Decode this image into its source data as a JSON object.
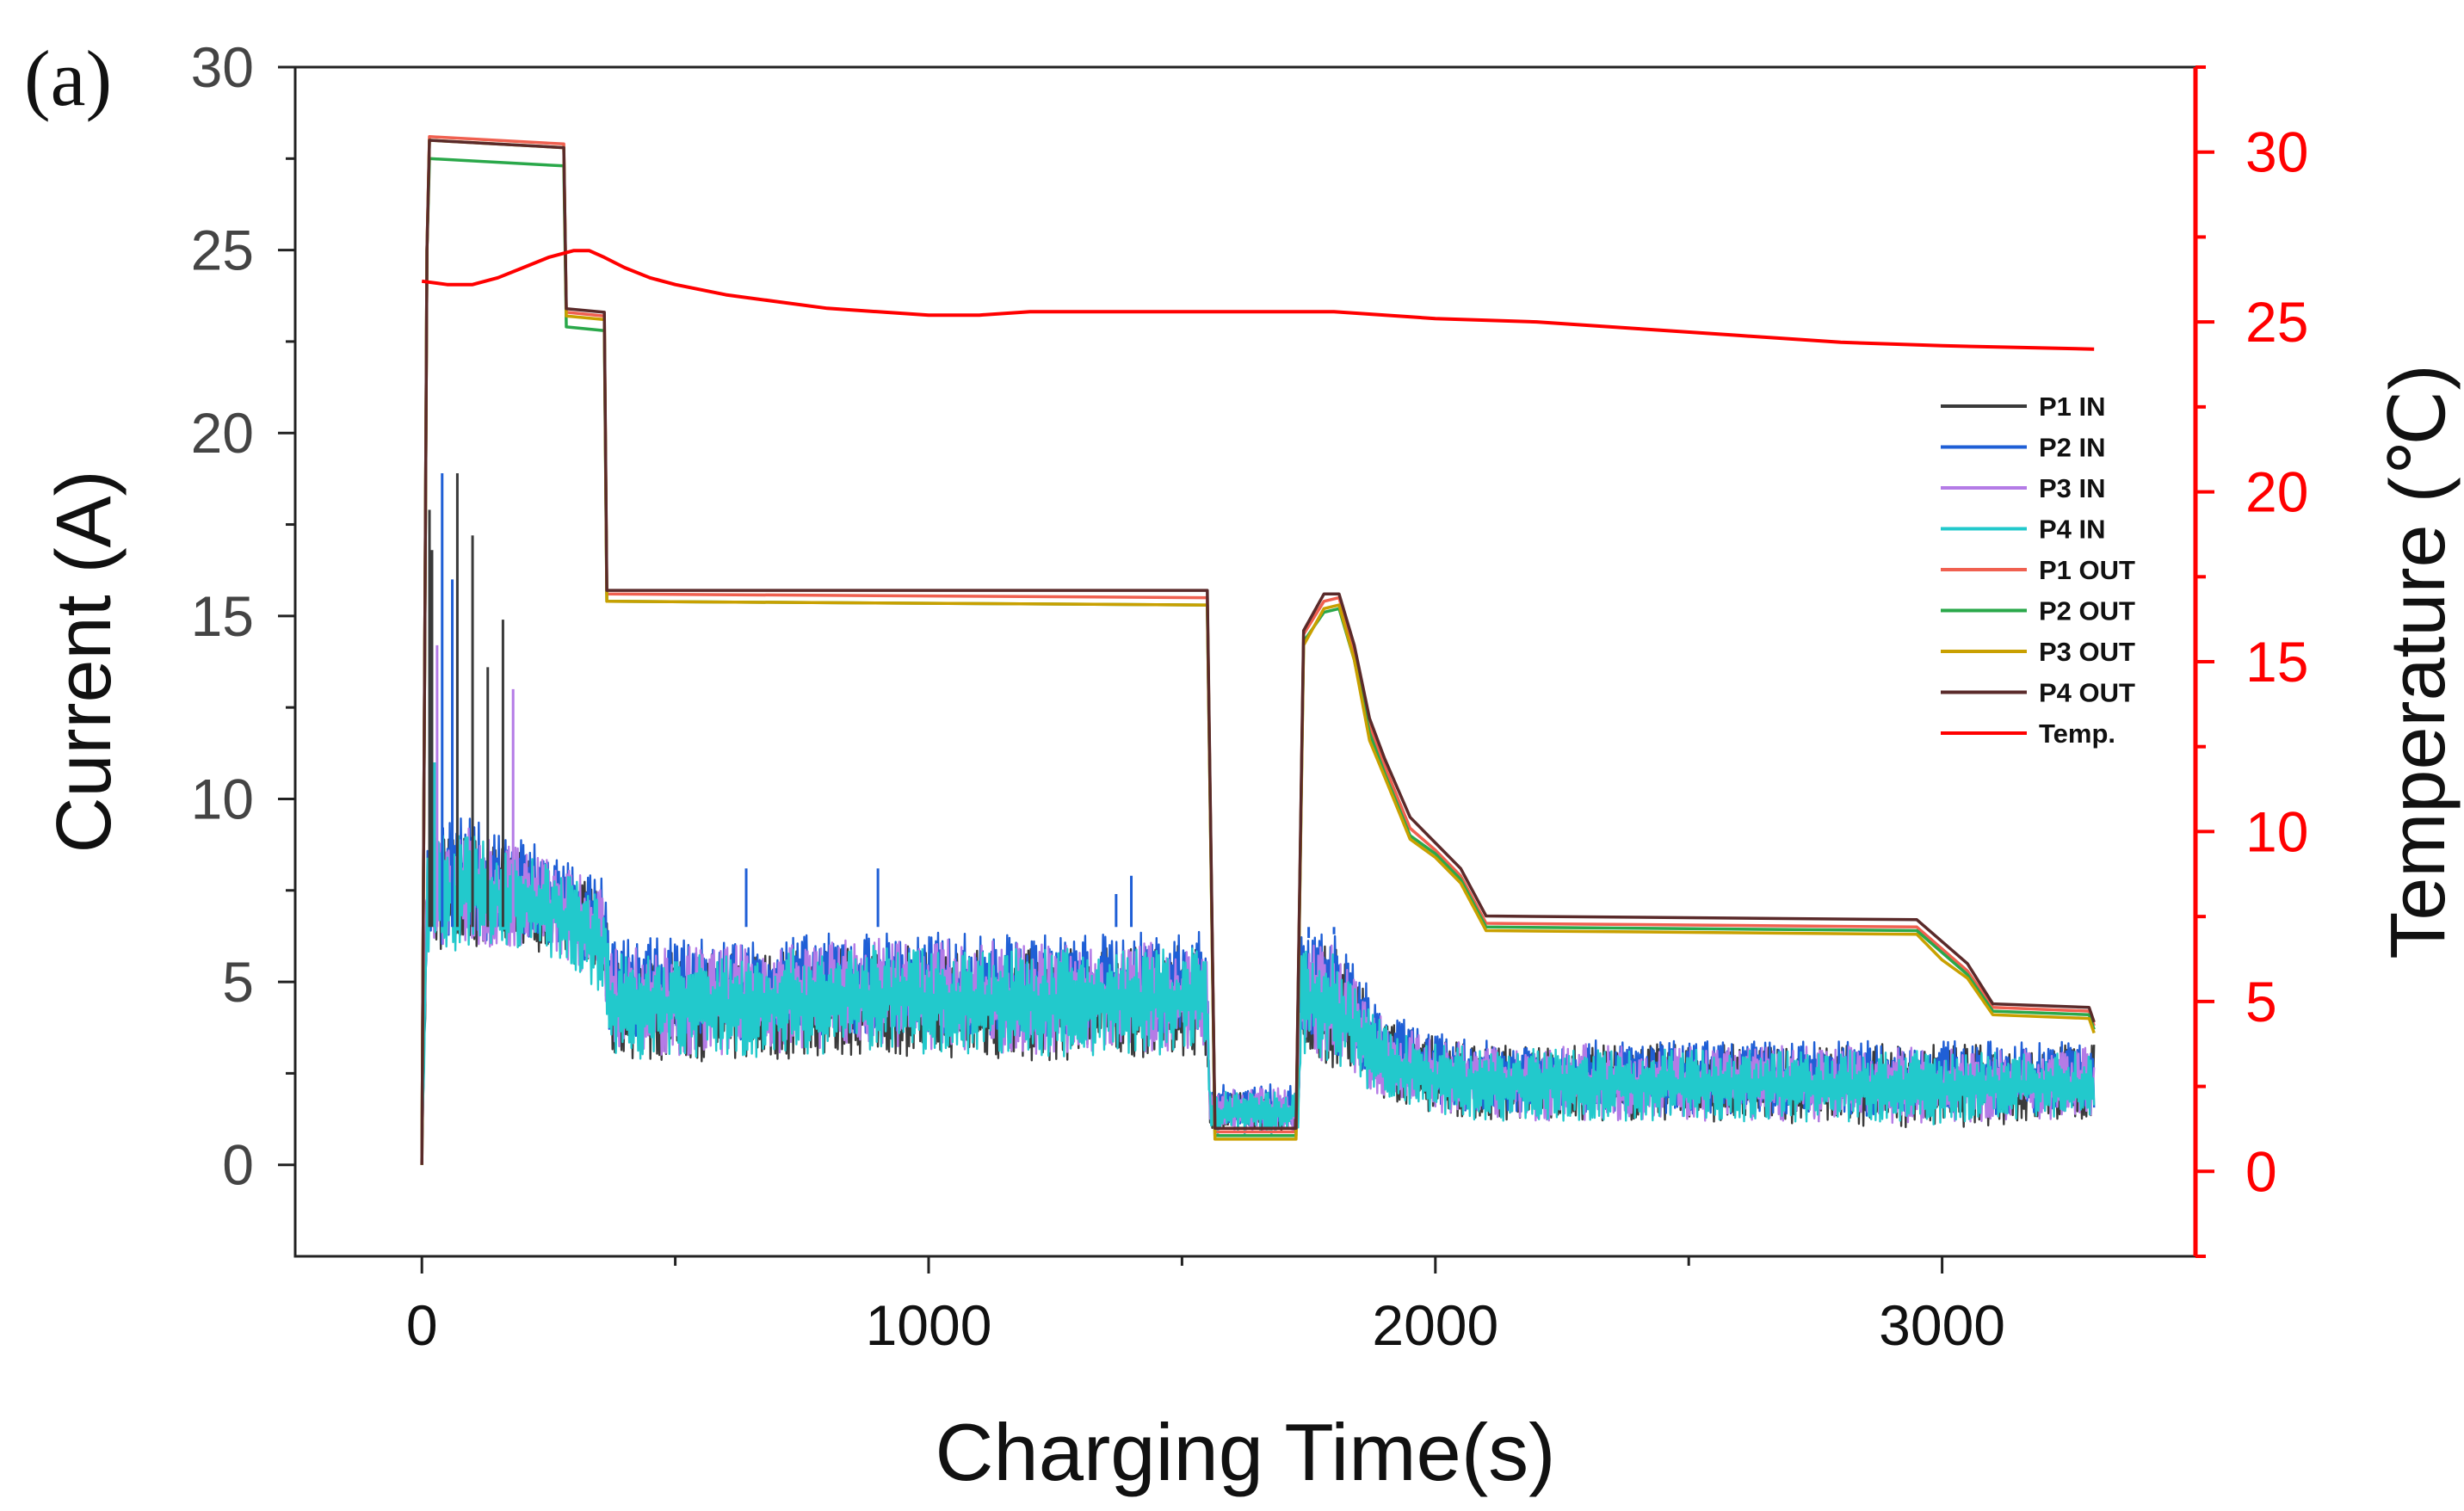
{
  "panel_label": "(a)",
  "chart_data": {
    "type": "line",
    "title": "",
    "xlabel": "Charging Time(s)",
    "ylabel": "Current (A)",
    "y2label": "Temperature (℃)",
    "xlim": [
      -250,
      3500
    ],
    "ylim": [
      -2.5,
      30
    ],
    "y2lim": [
      -2.5,
      32.5
    ],
    "x_ticks": [
      0,
      1000,
      2000,
      3000
    ],
    "x_tick_labels": [
      "0",
      "1000",
      "2000",
      "3000"
    ],
    "y_ticks": [
      0,
      5,
      10,
      15,
      20,
      25,
      30
    ],
    "y_tick_labels": [
      "0",
      "5",
      "10",
      "15",
      "20",
      "25",
      "30"
    ],
    "y2_ticks": [
      0,
      5,
      10,
      15,
      20,
      25,
      30
    ],
    "y2_tick_labels": [
      "0",
      "5",
      "10",
      "15",
      "20",
      "25",
      "30"
    ],
    "legend_position": "right-center",
    "legend": [
      {
        "name": "P1 IN",
        "color": "#3a3a3a"
      },
      {
        "name": "P2 IN",
        "color": "#1f5fd6"
      },
      {
        "name": "P3 IN",
        "color": "#b47be6"
      },
      {
        "name": "P4 IN",
        "color": "#22c9cc"
      },
      {
        "name": "P1 OUT",
        "color": "#f06050"
      },
      {
        "name": "P2 OUT",
        "color": "#2aa84a"
      },
      {
        "name": "P3 OUT",
        "color": "#c9a000"
      },
      {
        "name": "P4 OUT",
        "color": "#5a2a2a"
      },
      {
        "name": "Temp.",
        "color": "#ff0000"
      }
    ],
    "series": [
      {
        "name": "P1 OUT",
        "axis": "left",
        "color": "#f06050",
        "x": [
          0,
          10,
          15,
          280,
          285,
          360,
          365,
          1550,
          1565,
          1725,
          1740,
          1780,
          1810,
          1840,
          1870,
          1900,
          1950,
          2000,
          2050,
          2100,
          2950,
          3000,
          3050,
          3100,
          3290,
          3300
        ],
        "y": [
          0,
          25,
          28.1,
          27.9,
          23.3,
          23.2,
          15.6,
          15.5,
          0.9,
          0.9,
          14.5,
          15.4,
          15.5,
          14,
          12,
          10.9,
          9.2,
          8.6,
          7.9,
          6.6,
          6.5,
          5.9,
          5.3,
          4.3,
          4.2,
          3.8
        ]
      },
      {
        "name": "P2 OUT",
        "axis": "left",
        "color": "#2aa84a",
        "x": [
          0,
          10,
          15,
          280,
          285,
          360,
          365,
          1550,
          1565,
          1725,
          1740,
          1780,
          1810,
          1840,
          1870,
          1900,
          1950,
          2000,
          2050,
          2100,
          2950,
          3000,
          3050,
          3100,
          3290,
          3300
        ],
        "y": [
          0,
          25,
          27.5,
          27.3,
          22.9,
          22.8,
          15.4,
          15.3,
          0.8,
          0.8,
          14.3,
          15.1,
          15.2,
          13.8,
          11.8,
          10.7,
          9.0,
          8.5,
          7.8,
          6.5,
          6.4,
          5.8,
          5.2,
          4.2,
          4.1,
          3.7
        ]
      },
      {
        "name": "P3 OUT",
        "axis": "left",
        "color": "#c9a000",
        "x": [
          0,
          10,
          15,
          280,
          285,
          360,
          365,
          1550,
          1565,
          1725,
          1740,
          1780,
          1810,
          1840,
          1870,
          1900,
          1950,
          2000,
          2050,
          2100,
          2950,
          3000,
          3050,
          3100,
          3290,
          3300
        ],
        "y": [
          0,
          25,
          28.0,
          27.8,
          23.2,
          23.1,
          15.4,
          15.3,
          0.7,
          0.7,
          14.2,
          15.2,
          15.3,
          13.8,
          11.6,
          10.6,
          8.9,
          8.4,
          7.7,
          6.4,
          6.3,
          5.6,
          5.1,
          4.1,
          4.0,
          3.6
        ]
      },
      {
        "name": "P4 OUT",
        "axis": "left",
        "color": "#5a2a2a",
        "x": [
          0,
          10,
          15,
          280,
          285,
          360,
          365,
          1550,
          1565,
          1725,
          1740,
          1780,
          1810,
          1840,
          1870,
          1900,
          1950,
          2000,
          2050,
          2100,
          2950,
          3000,
          3050,
          3100,
          3290,
          3300
        ],
        "y": [
          0,
          25,
          28.0,
          27.8,
          23.4,
          23.3,
          15.7,
          15.7,
          1.0,
          1.0,
          14.6,
          15.6,
          15.6,
          14.2,
          12.2,
          11.1,
          9.5,
          8.8,
          8.1,
          6.8,
          6.7,
          6.1,
          5.5,
          4.4,
          4.3,
          3.9
        ]
      },
      {
        "name": "P1 IN",
        "axis": "left",
        "color": "#3a3a3a",
        "x": [
          0,
          10,
          20,
          100,
          200,
          280,
          360,
          370,
          600,
          900,
          1200,
          1550,
          1555,
          1730,
          1735,
          1800,
          1900,
          2000,
          2100,
          2500,
          3000,
          3300
        ],
        "y": [
          0,
          6,
          7,
          7.2,
          6.8,
          6.5,
          5.5,
          4.3,
          4.2,
          4.4,
          4.3,
          4.2,
          1.5,
          1.6,
          4.0,
          3.9,
          3.0,
          2.6,
          2.3,
          2.1,
          2.0,
          2.2
        ],
        "y_lo": [
          0,
          5.8,
          5.8,
          5.9,
          5.9,
          5.7,
          4.8,
          2.9,
          2.8,
          3.0,
          2.8,
          3.0,
          0.9,
          0.9,
          3.0,
          2.6,
          1.8,
          1.4,
          1.2,
          1.2,
          1.0,
          1.2
        ],
        "y_hi": [
          0,
          8.5,
          9,
          9,
          8.5,
          8,
          7.5,
          5.8,
          5.8,
          6.0,
          5.9,
          6.0,
          2.0,
          2.0,
          6.2,
          6.0,
          4.0,
          3.5,
          3.3,
          3.3,
          3.3,
          3.3
        ]
      },
      {
        "name": "P2 IN",
        "axis": "left",
        "color": "#1f5fd6",
        "x": [
          0,
          10,
          20,
          100,
          200,
          280,
          360,
          370,
          600,
          900,
          1200,
          1550,
          1555,
          1730,
          1735,
          1800,
          1900,
          2000,
          2100,
          2500,
          3000,
          3300
        ],
        "y": [
          0,
          6.5,
          7.3,
          7.4,
          7.0,
          6.6,
          5.7,
          4.8,
          4.7,
          4.9,
          4.8,
          4.7,
          1.6,
          1.7,
          4.5,
          4.3,
          3.2,
          2.8,
          2.5,
          2.4,
          2.3,
          2.5
        ],
        "y_lo": [
          0,
          6.0,
          6.0,
          6.1,
          6.0,
          5.8,
          4.9,
          3.5,
          3.4,
          3.6,
          3.4,
          3.5,
          1.0,
          1.0,
          3.5,
          3.0,
          2.0,
          1.6,
          1.4,
          1.4,
          1.3,
          1.5
        ],
        "y_hi": [
          0,
          9,
          9.5,
          9.5,
          9,
          8.5,
          7.8,
          6.2,
          6.2,
          6.4,
          6.3,
          6.4,
          2.2,
          2.2,
          6.4,
          6.4,
          4.2,
          3.6,
          3.4,
          3.4,
          3.4,
          3.4
        ]
      },
      {
        "name": "P3 IN",
        "axis": "left",
        "color": "#b47be6",
        "x": [
          0,
          10,
          20,
          100,
          200,
          280,
          360,
          370,
          600,
          900,
          1200,
          1550,
          1555,
          1730,
          1735,
          1800,
          1900,
          2000,
          2100,
          2500,
          3000,
          3300
        ],
        "y": [
          0,
          6.2,
          7.1,
          7.1,
          6.8,
          6.4,
          5.4,
          4.4,
          4.3,
          4.5,
          4.4,
          4.3,
          1.5,
          1.6,
          4.1,
          3.9,
          3.0,
          2.6,
          2.3,
          2.2,
          2.1,
          2.2
        ],
        "y_lo": [
          0,
          5.9,
          5.9,
          6.0,
          5.9,
          5.7,
          4.7,
          3.0,
          3.0,
          3.2,
          3.0,
          3.1,
          0.9,
          0.9,
          3.1,
          2.7,
          1.8,
          1.4,
          1.2,
          1.2,
          1.1,
          1.3
        ],
        "y_hi": [
          0,
          8.6,
          9.2,
          9.2,
          8.7,
          8.2,
          7.6,
          6.0,
          6.0,
          6.2,
          6.1,
          6.1,
          2.1,
          2.1,
          6.1,
          6.0,
          4.0,
          3.4,
          3.3,
          3.3,
          3.2,
          3.2
        ]
      },
      {
        "name": "P4 IN",
        "axis": "left",
        "color": "#22c9cc",
        "x": [
          0,
          10,
          20,
          100,
          200,
          280,
          360,
          370,
          600,
          900,
          1200,
          1550,
          1555,
          1730,
          1735,
          1800,
          1900,
          2000,
          2100,
          2500,
          3000,
          3300
        ],
        "y": [
          0,
          6.0,
          7.0,
          7.0,
          6.7,
          6.3,
          5.3,
          4.2,
          4.1,
          4.3,
          4.2,
          4.1,
          1.4,
          1.5,
          3.9,
          3.7,
          2.8,
          2.4,
          2.2,
          2.1,
          2.0,
          2.1
        ],
        "y_lo": [
          0,
          5.8,
          5.8,
          5.9,
          5.8,
          5.6,
          4.6,
          2.9,
          2.9,
          3.1,
          2.9,
          3.0,
          0.8,
          0.8,
          3.0,
          2.6,
          1.7,
          1.3,
          1.2,
          1.2,
          1.1,
          1.2
        ],
        "y_hi": [
          0,
          8.4,
          9.0,
          9.0,
          8.5,
          8.0,
          7.4,
          5.8,
          5.8,
          6.0,
          5.9,
          6.0,
          2.0,
          2.0,
          6.0,
          5.8,
          3.8,
          3.3,
          3.2,
          3.2,
          3.1,
          3.1
        ]
      },
      {
        "name": "Temp.",
        "axis": "right",
        "color": "#ff0000",
        "x": [
          0,
          50,
          100,
          150,
          200,
          250,
          300,
          330,
          360,
          400,
          450,
          500,
          600,
          700,
          800,
          900,
          1000,
          1100,
          1200,
          1500,
          1800,
          2000,
          2200,
          2400,
          2600,
          2800,
          3000,
          3300
        ],
        "y": [
          26.2,
          26.1,
          26.1,
          26.3,
          26.6,
          26.9,
          27.1,
          27.1,
          26.9,
          26.6,
          26.3,
          26.1,
          25.8,
          25.6,
          25.4,
          25.3,
          25.2,
          25.2,
          25.3,
          25.3,
          25.3,
          25.1,
          25.0,
          24.8,
          24.6,
          24.4,
          24.3,
          24.2
        ]
      }
    ],
    "spikes": [
      {
        "x": 15,
        "y": 17.9,
        "color": "#3a3a3a"
      },
      {
        "x": 20,
        "y": 16.8,
        "color": "#3a3a3a"
      },
      {
        "x": 40,
        "y": 18.9,
        "color": "#1f5fd6"
      },
      {
        "x": 60,
        "y": 16.0,
        "color": "#1f5fd6"
      },
      {
        "x": 70,
        "y": 18.9,
        "color": "#3a3a3a"
      },
      {
        "x": 100,
        "y": 17.2,
        "color": "#3a3a3a"
      },
      {
        "x": 130,
        "y": 13.6,
        "color": "#3a3a3a"
      },
      {
        "x": 160,
        "y": 14.9,
        "color": "#3a3a3a"
      },
      {
        "x": 180,
        "y": 13.0,
        "color": "#b47be6"
      },
      {
        "x": 30,
        "y": 14.2,
        "color": "#b47be6"
      },
      {
        "x": 25,
        "y": 11.0,
        "color": "#22c9cc"
      },
      {
        "x": 640,
        "y": 8.1,
        "color": "#1f5fd6"
      },
      {
        "x": 900,
        "y": 8.1,
        "color": "#1f5fd6"
      },
      {
        "x": 1370,
        "y": 7.4,
        "color": "#1f5fd6"
      },
      {
        "x": 1400,
        "y": 7.9,
        "color": "#1f5fd6"
      },
      {
        "x": 1800,
        "y": 6.3,
        "color": "#1f5fd6"
      },
      {
        "x": 1750,
        "y": 6.2,
        "color": "#1f5fd6"
      }
    ]
  }
}
